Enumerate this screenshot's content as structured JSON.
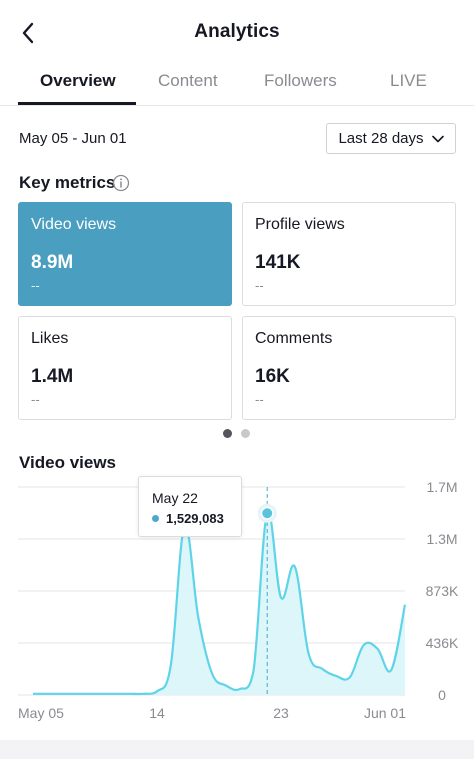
{
  "header": {
    "title": "Analytics",
    "back_icon": "chevron-left-icon"
  },
  "tabs": [
    {
      "label": "Overview",
      "active": true
    },
    {
      "label": "Content",
      "active": false
    },
    {
      "label": "Followers",
      "active": false
    },
    {
      "label": "LIVE",
      "active": false
    }
  ],
  "filters": {
    "date_range": "May 05 - Jun 01",
    "period": "Last 28 days",
    "period_icon": "chevron-down-icon"
  },
  "key_metrics": {
    "title": "Key metrics",
    "info_icon": "info-icon",
    "cards": [
      {
        "label": "Video views",
        "value": "8.9M",
        "delta": "--",
        "selected": true
      },
      {
        "label": "Profile views",
        "value": "141K",
        "delta": "--",
        "selected": false
      },
      {
        "label": "Likes",
        "value": "1.4M",
        "delta": "--",
        "selected": false
      },
      {
        "label": "Comments",
        "value": "16K",
        "delta": "--",
        "selected": false
      }
    ],
    "pages": {
      "count": 2,
      "current": 1
    }
  },
  "chart_section": {
    "title": "Video views"
  },
  "tooltip": {
    "date": "May 22",
    "value": "1,529,083"
  },
  "colors": {
    "accent": "#4a9ec0",
    "line": "#5fd4e8",
    "fill": "#d8f5fa"
  },
  "chart_data": {
    "type": "area",
    "title": "Video views",
    "x_tick_labels": [
      "May 05",
      "14",
      "23",
      "Jun 01"
    ],
    "x_tick_index": [
      0,
      9,
      18,
      27
    ],
    "y_tick_labels": [
      "0",
      "436K",
      "873K",
      "1.3M",
      "1.7M"
    ],
    "ylim": [
      0,
      1750000
    ],
    "grid": true,
    "highlight": {
      "index": 17,
      "label": "May 22",
      "value": 1529083
    },
    "values": [
      10000,
      10000,
      10000,
      10000,
      10000,
      10000,
      10000,
      10000,
      10000,
      30000,
      250000,
      1420000,
      650000,
      180000,
      80000,
      50000,
      200000,
      1529083,
      820000,
      1080000,
      350000,
      220000,
      160000,
      150000,
      420000,
      390000,
      210000,
      760000
    ]
  }
}
